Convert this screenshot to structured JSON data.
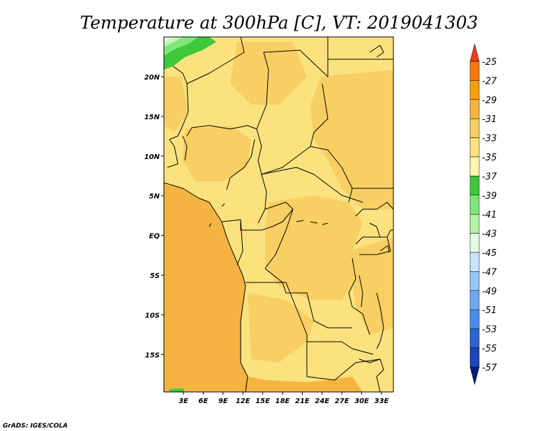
{
  "title": "Temperature at 300hPa [C], VT: 2019041303",
  "credit": "GrADS: IGES/COLA",
  "map": {
    "lon_ticks": [
      "3E",
      "6E",
      "9E",
      "12E",
      "15E",
      "18E",
      "21E",
      "24E",
      "27E",
      "30E",
      "33E"
    ],
    "lat_ticks": [
      "20N",
      "15N",
      "10N",
      "5N",
      "EQ",
      "5S",
      "10S",
      "15S"
    ],
    "fill_colors": {
      "ocean_deep": "#f5b441",
      "land_light": "#fbe27e",
      "land_mid": "#f8cf63",
      "green_dark": "#3dc93a",
      "green_mid": "#7ee67a",
      "green_light": "#c8f5b8",
      "pale": "#e9fbe6"
    }
  },
  "colorbar": {
    "levels": [
      "-25",
      "-27",
      "-29",
      "-31",
      "-33",
      "-35",
      "-37",
      "-39",
      "-41",
      "-43",
      "-45",
      "-47",
      "-49",
      "-51",
      "-53",
      "-55",
      "-57"
    ],
    "colors": [
      "#f03c14",
      "#f5780a",
      "#f5a00a",
      "#f5b441",
      "#f8cf63",
      "#fbe27e",
      "#fff5b0",
      "#3dc93a",
      "#7ee67a",
      "#b4f0a8",
      "#e6fbe6",
      "#c8e6fa",
      "#96c8f5",
      "#6eaaf0",
      "#4b8cea",
      "#2d64d2",
      "#1e46b4",
      "#0a1e78"
    ]
  }
}
